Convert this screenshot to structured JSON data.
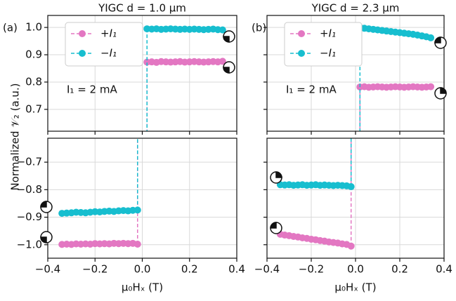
{
  "chart_data": [
    {
      "type": "line",
      "title": "YIGC d = 1.0 μm",
      "panel_label": "(a)",
      "annotation": "I₁ = 2 mA",
      "legend": "upper left",
      "ylabel": "Normalized 𝒱₂ (a.u.)",
      "x": [
        0.02,
        0.04,
        0.06,
        0.08,
        0.1,
        0.12,
        0.14,
        0.16,
        0.18,
        0.2,
        0.22,
        0.24,
        0.26,
        0.28,
        0.3,
        0.32,
        0.34
      ],
      "xlim": [
        -0.4,
        0.4
      ],
      "xticks": [
        -0.4,
        -0.2,
        0,
        0.2,
        0.4
      ],
      "ylim": [
        0.62,
        1.044
      ],
      "yticks": [
        {
          "value": 1,
          "label": "1.0"
        },
        0.9,
        0.8,
        0.7
      ],
      "grid": true,
      "series": [
        {
          "name": "+I₁",
          "color": "#e377c2",
          "values": [
            0.873,
            0.874,
            0.872,
            0.875,
            0.874,
            0.873,
            0.874,
            0.875,
            0.873,
            0.874,
            0.875,
            0.874,
            0.873,
            0.874,
            0.875,
            0.874,
            0.876
          ]
        },
        {
          "name": "−I₁",
          "color": "#17becf",
          "values": [
            0.995,
            0.994,
            0.995,
            0.993,
            0.994,
            0.995,
            0.994,
            0.993,
            0.994,
            0.993,
            0.994,
            0.993,
            0.992,
            0.993,
            0.994,
            0.992,
            0.991
          ]
        }
      ]
    },
    {
      "type": "line",
      "xlabel": "μ₀Hₓ (T)",
      "x": [
        -0.34,
        -0.32,
        -0.3,
        -0.28,
        -0.26,
        -0.24,
        -0.22,
        -0.2,
        -0.18,
        -0.16,
        -0.14,
        -0.12,
        -0.1,
        -0.08,
        -0.06,
        -0.04,
        -0.02
      ],
      "xlim": [
        -0.4,
        0.4
      ],
      "xticks": [
        {
          "value": -0.4,
          "label": "−0.4"
        },
        {
          "value": -0.2,
          "label": "−0.2"
        },
        {
          "value": 0,
          "label": "0.0"
        },
        0.2,
        0.4
      ],
      "ylim": [
        -1.049,
        -0.613
      ],
      "yticks": [
        {
          "value": -0.7,
          "label": "−0.7"
        },
        {
          "value": -0.8,
          "label": "−0.8"
        },
        {
          "value": -0.9,
          "label": "−0.9"
        },
        {
          "value": -1,
          "label": "−1.0"
        }
      ],
      "grid": true,
      "series": [
        {
          "name": "+I₁",
          "color": "#e377c2",
          "values": [
            -0.999,
            -0.998,
            -0.999,
            -0.997,
            -0.998,
            -0.997,
            -0.998,
            -0.996,
            -0.997,
            -0.996,
            -0.997,
            -0.995,
            -0.996,
            -0.995,
            -0.996,
            -0.995,
            -0.998
          ]
        },
        {
          "name": "−I₁",
          "color": "#17becf",
          "values": [
            -0.886,
            -0.885,
            -0.884,
            -0.882,
            -0.883,
            -0.884,
            -0.882,
            -0.88,
            -0.881,
            -0.879,
            -0.878,
            -0.879,
            -0.877,
            -0.876,
            -0.877,
            -0.875,
            -0.874
          ]
        }
      ]
    },
    {
      "type": "line",
      "title": "YIGC d = 2.3 μm",
      "panel_label": "(b)",
      "annotation": "I₁ = 2 mA",
      "legend": "upper left",
      "x": [
        0.02,
        0.04,
        0.06,
        0.08,
        0.1,
        0.12,
        0.14,
        0.16,
        0.18,
        0.2,
        0.22,
        0.24,
        0.26,
        0.28,
        0.3,
        0.32,
        0.34
      ],
      "xlim": [
        -0.4,
        0.4
      ],
      "xticks": [
        -0.4,
        -0.2,
        0,
        0.2,
        0.4
      ],
      "ylim": [
        0.62,
        1.044
      ],
      "yticks": [
        1,
        0.9,
        0.8,
        0.7
      ],
      "grid": true,
      "series": [
        {
          "name": "+I₁",
          "color": "#e377c2",
          "values": [
            0.782,
            0.783,
            0.781,
            0.782,
            0.783,
            0.782,
            0.781,
            0.782,
            0.783,
            0.782,
            0.781,
            0.782,
            0.783,
            0.782,
            0.781,
            0.782,
            0.783
          ]
        },
        {
          "name": "−I₁",
          "color": "#17becf",
          "values": [
            1.0,
            0.997,
            0.995,
            0.993,
            0.991,
            0.989,
            0.987,
            0.985,
            0.983,
            0.981,
            0.979,
            0.977,
            0.975,
            0.972,
            0.969,
            0.966,
            0.962
          ]
        }
      ]
    },
    {
      "type": "line",
      "xlabel": "μ₀Hₓ (T)",
      "x": [
        -0.34,
        -0.32,
        -0.3,
        -0.28,
        -0.26,
        -0.24,
        -0.22,
        -0.2,
        -0.18,
        -0.16,
        -0.14,
        -0.12,
        -0.1,
        -0.08,
        -0.06,
        -0.04,
        -0.02
      ],
      "xlim": [
        -0.4,
        0.4
      ],
      "xticks": [
        {
          "value": -0.4,
          "label": "−0.4"
        },
        {
          "value": -0.2,
          "label": "−0.2"
        },
        {
          "value": 0,
          "label": "0.0"
        },
        0.2,
        0.4
      ],
      "ylim": [
        -1.049,
        -0.613
      ],
      "yticks": [
        -0.7,
        -0.8,
        -0.9,
        -1
      ],
      "grid": true,
      "series": [
        {
          "name": "+I₁",
          "color": "#e377c2",
          "values": [
            -0.962,
            -0.965,
            -0.967,
            -0.97,
            -0.972,
            -0.975,
            -0.977,
            -0.98,
            -0.982,
            -0.985,
            -0.987,
            -0.99,
            -0.992,
            -0.994,
            -0.997,
            -0.999,
            -1.005
          ]
        },
        {
          "name": "−I₁",
          "color": "#17becf",
          "values": [
            -0.782,
            -0.783,
            -0.782,
            -0.784,
            -0.783,
            -0.782,
            -0.784,
            -0.783,
            -0.782,
            -0.784,
            -0.783,
            -0.784,
            -0.785,
            -0.784,
            -0.785,
            -0.786,
            -0.789
          ]
        }
      ]
    }
  ]
}
